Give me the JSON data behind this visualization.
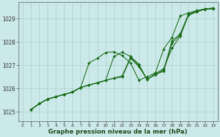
{
  "title": "Graphe pression niveau de la mer (hPa)",
  "background_color": "#cce9e9",
  "plot_bg_color": "#cce9e9",
  "grid_color": "#aacccc",
  "line_color": "#1a6b1a",
  "xlim": [
    -0.5,
    23.5
  ],
  "ylim": [
    1024.6,
    1029.7
  ],
  "xticks": [
    0,
    1,
    2,
    3,
    4,
    5,
    6,
    7,
    8,
    9,
    10,
    11,
    12,
    13,
    14,
    15,
    16,
    17,
    18,
    19,
    20,
    21,
    22,
    23
  ],
  "yticks": [
    1025,
    1026,
    1027,
    1028,
    1029
  ],
  "series": [
    {
      "x": [
        1,
        2,
        3,
        4,
        5,
        6,
        7,
        8,
        9,
        10,
        11,
        12,
        13,
        14,
        15,
        16,
        17,
        18,
        19,
        20,
        21,
        22,
        23
      ],
      "y": [
        1025.1,
        1025.35,
        1025.55,
        1025.65,
        1025.75,
        1025.85,
        1026.05,
        1026.15,
        1026.25,
        1026.35,
        1026.45,
        1026.5,
        1027.3,
        1026.95,
        1026.4,
        1026.6,
        1026.75,
        1027.95,
        1028.3,
        1029.15,
        1029.3,
        1029.4,
        1029.42
      ]
    },
    {
      "x": [
        1,
        2,
        3,
        4,
        5,
        6,
        7,
        8,
        9,
        10,
        11,
        12,
        13,
        14,
        15,
        16,
        17,
        18,
        19,
        20,
        21,
        22,
        23
      ],
      "y": [
        1025.1,
        1025.35,
        1025.55,
        1025.65,
        1025.75,
        1025.85,
        1026.05,
        1026.15,
        1026.25,
        1026.35,
        1026.45,
        1026.55,
        1027.35,
        1027.0,
        1026.4,
        1026.6,
        1026.8,
        1028.05,
        1028.35,
        1029.2,
        1029.32,
        1029.42,
        1029.45
      ]
    },
    {
      "x": [
        1,
        2,
        3,
        4,
        5,
        6,
        7,
        8,
        9,
        10,
        11,
        12,
        13,
        14,
        15,
        16,
        17,
        18,
        19,
        20,
        21,
        22,
        23
      ],
      "y": [
        1025.1,
        1025.35,
        1025.55,
        1025.65,
        1025.75,
        1025.85,
        1026.05,
        1027.1,
        1027.3,
        1027.55,
        1027.58,
        1027.42,
        1027.1,
        1026.37,
        1026.5,
        1026.68,
        1027.7,
        1028.2,
        1029.12,
        1029.25,
        1029.35,
        1029.42,
        1029.45
      ]
    },
    {
      "x": [
        1,
        2,
        3,
        4,
        5,
        6,
        7,
        8,
        9,
        10,
        11,
        12,
        13,
        14,
        15,
        16,
        17,
        18,
        19,
        20,
        21,
        22,
        23
      ],
      "y": [
        1025.1,
        1025.35,
        1025.55,
        1025.65,
        1025.75,
        1025.85,
        1026.05,
        1026.15,
        1026.25,
        1026.35,
        1027.38,
        1027.56,
        1027.38,
        1027.05,
        1026.38,
        1026.65,
        1026.85,
        1027.73,
        1028.25,
        1029.18,
        1029.3,
        1029.42,
        1029.45
      ]
    }
  ]
}
